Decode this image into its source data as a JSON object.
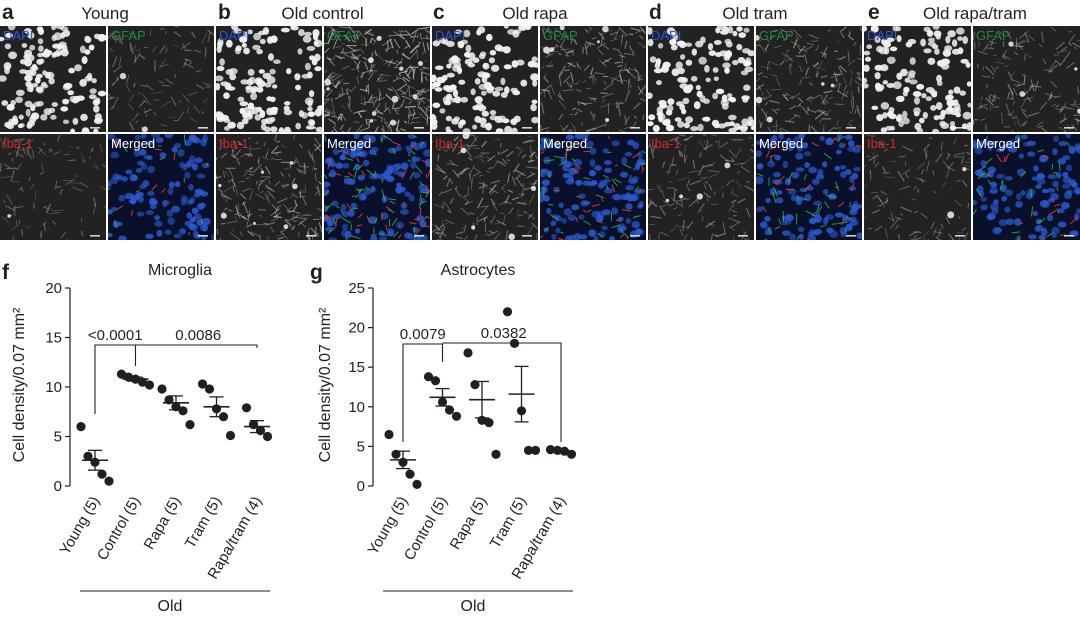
{
  "panels": [
    {
      "letter": "a",
      "title": "Young"
    },
    {
      "letter": "b",
      "title": "Old control"
    },
    {
      "letter": "c",
      "title": "Old rapa"
    },
    {
      "letter": "d",
      "title": "Old tram"
    },
    {
      "letter": "e",
      "title": "Old rapa/tram"
    }
  ],
  "stain_labels": {
    "dapi": "DAPI",
    "gfap": "GFAP",
    "iba": "Iba-1",
    "merged": "Merged"
  },
  "colors": {
    "dapi": "#2a5bd0",
    "gfap": "#1b8a3a",
    "iba": "#d42a2a",
    "marker": "#231f20"
  },
  "chart_data": [
    {
      "type": "scatter",
      "letter": "f",
      "title": "Microglia",
      "ylabel": "Cell density/0.07 mm²",
      "ylim": [
        0,
        20
      ],
      "yticks": [
        0,
        5,
        10,
        15,
        20
      ],
      "categories": [
        "Young (5)",
        "Control (5)",
        "Rapa (5)",
        "Tram (5)",
        "Rapa/tram (4)"
      ],
      "group_label": "Old",
      "points": [
        [
          6.0,
          3.0,
          2.4,
          1.2,
          0.5
        ],
        [
          11.3,
          11.0,
          10.8,
          10.5,
          10.2
        ],
        [
          9.8,
          8.7,
          8.0,
          7.6,
          6.2
        ],
        [
          10.3,
          9.8,
          7.8,
          7.0,
          5.1
        ],
        [
          7.9,
          6.2,
          5.6,
          5.0
        ]
      ],
      "mean": [
        2.6,
        10.8,
        8.4,
        8.0,
        6.0
      ],
      "sem": [
        1.0,
        0.2,
        0.7,
        1.0,
        0.6
      ],
      "brackets": [
        {
          "from": 0,
          "to": 1,
          "label": "<0.0001"
        },
        {
          "from": 1,
          "to": 4,
          "label": "0.0086"
        }
      ]
    },
    {
      "type": "scatter",
      "letter": "g",
      "title": "Astrocytes",
      "ylabel": "Cell density/0.07 mm²",
      "ylim": [
        0,
        25
      ],
      "yticks": [
        0,
        5,
        10,
        15,
        20,
        25
      ],
      "categories": [
        "Young (5)",
        "Control (5)",
        "Rapa (5)",
        "Tram (5)",
        "Rapa/tram (4)"
      ],
      "group_label": "Old",
      "points": [
        [
          6.5,
          4.0,
          3.0,
          1.5,
          0.2
        ],
        [
          13.8,
          13.3,
          10.6,
          9.6,
          8.8
        ],
        [
          16.8,
          12.8,
          8.3,
          8.0,
          4.0
        ],
        [
          22.0,
          18.0,
          9.5,
          4.5,
          4.5
        ],
        [
          4.6,
          4.5,
          4.4,
          4.0
        ]
      ],
      "mean": [
        3.3,
        11.2,
        10.9,
        11.6,
        4.4
      ],
      "sem": [
        1.1,
        1.1,
        2.3,
        3.5,
        0.2
      ],
      "brackets": [
        {
          "from": 0,
          "to": 1,
          "label": "0.0079"
        },
        {
          "from": 1,
          "to": 4,
          "label": "0.0382"
        }
      ]
    }
  ]
}
